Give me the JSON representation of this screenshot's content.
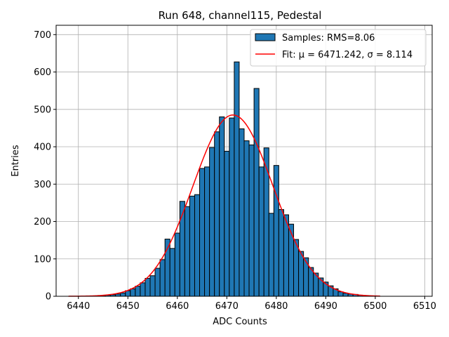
{
  "chart_data": {
    "type": "bar",
    "title": "Run 648, channel115, Pedestal",
    "xlabel": "ADC Counts",
    "ylabel": "Entries",
    "xlim": [
      6435.5,
      6511.5
    ],
    "ylim": [
      0,
      725
    ],
    "xticks": [
      6440,
      6450,
      6460,
      6470,
      6480,
      6490,
      6500,
      6510
    ],
    "yticks": [
      0,
      100,
      200,
      300,
      400,
      500,
      600,
      700
    ],
    "grid": true,
    "legend_position": "top-right",
    "bin_width": 1,
    "bins": [
      6444,
      6445,
      6446,
      6447,
      6448,
      6449,
      6450,
      6451,
      6452,
      6453,
      6454,
      6455,
      6456,
      6457,
      6458,
      6459,
      6460,
      6461,
      6462,
      6463,
      6464,
      6465,
      6466,
      6467,
      6468,
      6469,
      6470,
      6471,
      6472,
      6473,
      6474,
      6475,
      6476,
      6477,
      6478,
      6479,
      6480,
      6481,
      6482,
      6483,
      6484,
      6485,
      6486,
      6487,
      6488,
      6489,
      6490,
      6491,
      6492,
      6493,
      6494,
      6495,
      6496,
      6497,
      6498,
      6499,
      6500
    ],
    "counts": [
      1,
      2,
      3,
      4,
      6,
      9,
      15,
      20,
      27,
      36,
      48,
      55,
      75,
      98,
      153,
      128,
      169,
      254,
      240,
      268,
      272,
      342,
      346,
      398,
      440,
      480,
      388,
      477,
      627,
      448,
      416,
      405,
      556,
      346,
      397,
      222,
      350,
      232,
      218,
      193,
      152,
      120,
      103,
      77,
      62,
      49,
      38,
      28,
      20,
      12,
      8,
      6,
      5,
      3,
      2,
      1,
      1
    ],
    "series": [
      {
        "name": "Samples: RMS=8.06",
        "kind": "histogram",
        "color": "#1f77b4",
        "edgecolor": "#000000"
      },
      {
        "name": "Fit: μ = 6471.242, σ = 8.114",
        "kind": "gaussian-fit",
        "color": "#ff0000",
        "mu": 6471.242,
        "sigma": 8.114,
        "amplitude": 485,
        "x_range": [
          6438,
          6501
        ]
      }
    ]
  }
}
